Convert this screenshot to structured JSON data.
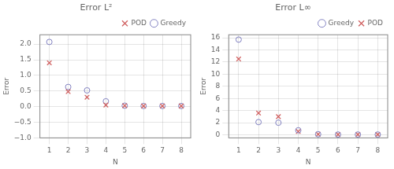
{
  "chart_data": [
    {
      "type": "scatter",
      "title": "Error L²",
      "x_label": "N",
      "y_label": "Error",
      "x": [
        1,
        2,
        3,
        4,
        5,
        6,
        7,
        8
      ],
      "series": [
        {
          "name": "POD",
          "color": "#d06060",
          "marker": "x",
          "values": [
            1.4,
            0.48,
            0.3,
            0.05,
            0.03,
            0.02,
            0.02,
            0.02
          ]
        },
        {
          "name": "Greedy",
          "color": "#8080c0",
          "marker": "o",
          "values": [
            2.07,
            0.63,
            0.52,
            0.17,
            0.03,
            0.02,
            0.02,
            0.02
          ]
        }
      ],
      "xlim": [
        0.5,
        8.5
      ],
      "xticks": [
        1,
        2,
        3,
        4,
        5,
        6,
        7,
        8
      ],
      "ylim": [
        -1.0,
        2.3
      ],
      "yticks": [
        {
          "value": -1.0,
          "label": "−1.0"
        },
        {
          "value": -0.5,
          "label": "−0.5"
        },
        {
          "value": 0.0,
          "label": "0.0"
        },
        {
          "value": 0.5,
          "label": "0.5"
        },
        {
          "value": 1.0,
          "label": "1.0"
        },
        {
          "value": 1.5,
          "label": "1.5"
        },
        {
          "value": 2.0,
          "label": "2.0"
        }
      ],
      "grid": true,
      "legend": "upper right"
    },
    {
      "type": "scatter",
      "title": "Error L∞",
      "x_label": "N",
      "y_label": "Error",
      "x": [
        1,
        2,
        3,
        4,
        5,
        6,
        7,
        8
      ],
      "series": [
        {
          "name": "Greedy",
          "color": "#8080c0",
          "marker": "o",
          "values": [
            15.7,
            2.1,
            2.0,
            0.75,
            0.1,
            0.05,
            0.05,
            0.05
          ]
        },
        {
          "name": "POD",
          "color": "#d06060",
          "marker": "x",
          "values": [
            12.5,
            3.6,
            3.0,
            0.55,
            0.1,
            0.05,
            0.05,
            0.05
          ]
        }
      ],
      "xlim": [
        0.5,
        8.5
      ],
      "xticks": [
        1,
        2,
        3,
        4,
        5,
        6,
        7,
        8
      ],
      "ylim": [
        -0.5,
        16.5
      ],
      "yticks": [
        0,
        2,
        4,
        6,
        8,
        10,
        12,
        14,
        16
      ],
      "grid": true,
      "legend": "upper right"
    }
  ]
}
